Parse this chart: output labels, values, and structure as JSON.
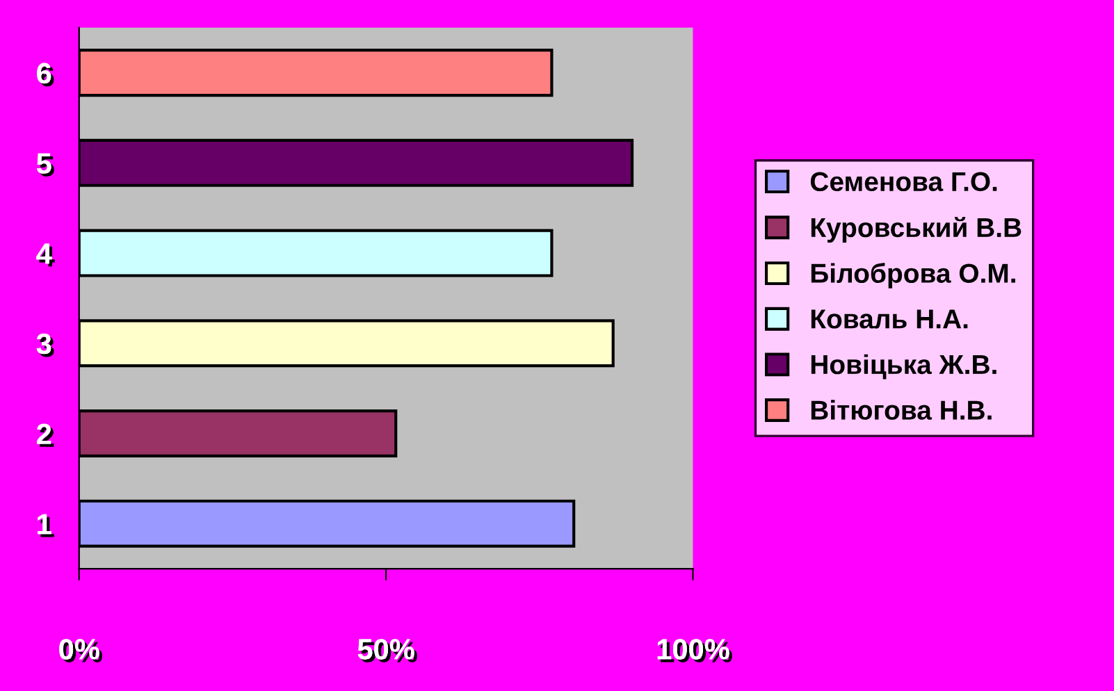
{
  "chart_data": {
    "type": "bar",
    "orientation": "horizontal",
    "stacked": true,
    "categories": [
      "6",
      "5",
      "4",
      "3",
      "2",
      "1"
    ],
    "series": [
      {
        "name": "Семенова Г.О.",
        "color": "#9999ff",
        "values": [
          null,
          null,
          null,
          null,
          null,
          80.6
        ]
      },
      {
        "name": "Куровський В.В",
        "color": "#993366",
        "values": [
          null,
          null,
          null,
          null,
          51.6,
          null
        ]
      },
      {
        "name": "Білоброва О.М.",
        "color": "#ffffcc",
        "values": [
          null,
          null,
          null,
          87.0,
          null,
          null
        ]
      },
      {
        "name": "Коваль Н.А.",
        "color": "#ccffff",
        "values": [
          null,
          null,
          77.0,
          null,
          null,
          null
        ]
      },
      {
        "name": "Новіцька Ж.В.",
        "color": "#660066",
        "values": [
          null,
          90.1,
          null,
          null,
          null,
          null
        ]
      },
      {
        "name": "Вітюгова Н.В.",
        "color": "#ff8080",
        "values": [
          77.0,
          null,
          null,
          null,
          null,
          null
        ]
      }
    ],
    "xlim": [
      0,
      100
    ],
    "xticks": [
      {
        "value": 0,
        "label": "0%"
      },
      {
        "value": 50,
        "label": "50%"
      },
      {
        "value": 100,
        "label": "100%"
      }
    ],
    "legend": "right",
    "grid": false
  }
}
